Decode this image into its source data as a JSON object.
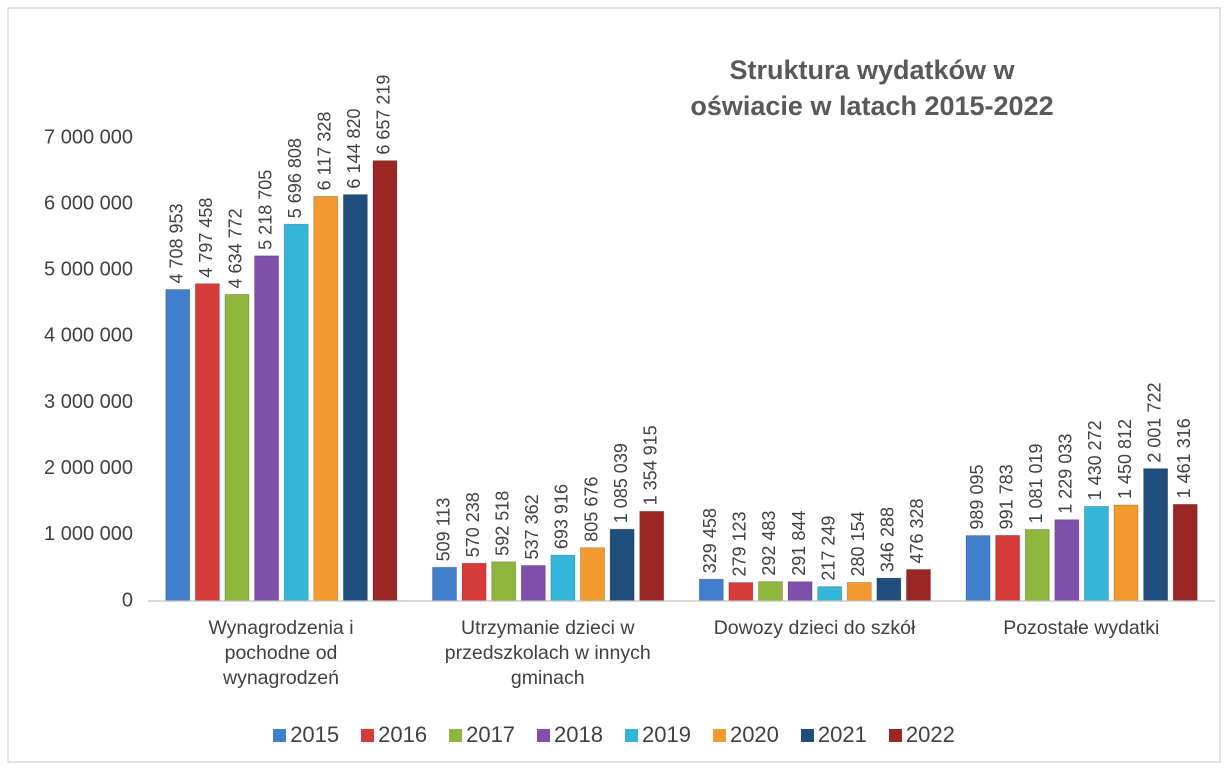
{
  "chart_data": {
    "type": "bar",
    "title": "Struktura wydatków w\noświacie w latach 2015-2022",
    "categories": [
      "Wynagrodzenia i\npochodne od\nwynagrodzeń",
      "Utrzymanie dzieci w\nprzedszkolach w innych\ngminach",
      "Dowozy dzieci do szkół",
      "Pozostałe wydatki"
    ],
    "series": [
      {
        "name": "2015",
        "color": "#3f7fcc",
        "values": [
          4708953,
          509113,
          329458,
          989095
        ],
        "value_labels": [
          "4 708 953",
          "509 113",
          "329 458",
          "989 095"
        ]
      },
      {
        "name": "2016",
        "color": "#d63b3b",
        "values": [
          4797458,
          570238,
          279123,
          991783
        ],
        "value_labels": [
          "4 797 458",
          "570 238",
          "279 123",
          "991 783"
        ]
      },
      {
        "name": "2017",
        "color": "#8fb63c",
        "values": [
          4634772,
          592518,
          292483,
          1081019
        ],
        "value_labels": [
          "4 634 772",
          "592 518",
          "292 483",
          "1 081 019"
        ]
      },
      {
        "name": "2018",
        "color": "#7e4fab",
        "values": [
          5218705,
          537362,
          291844,
          1229033
        ],
        "value_labels": [
          "5 218 705",
          "537 362",
          "291 844",
          "1 229 033"
        ]
      },
      {
        "name": "2019",
        "color": "#33b6d9",
        "values": [
          5696808,
          693916,
          217249,
          1430272
        ],
        "value_labels": [
          "5 696 808",
          "693 916",
          "217 249",
          "1 430 272"
        ]
      },
      {
        "name": "2020",
        "color": "#f39a2f",
        "values": [
          6117328,
          805676,
          280154,
          1450812
        ],
        "value_labels": [
          "6 117 328",
          "805 676",
          "280 154",
          "1 450 812"
        ]
      },
      {
        "name": "2021",
        "color": "#1f4e7c",
        "values": [
          6144820,
          1085039,
          346288,
          2001722
        ],
        "value_labels": [
          "6 144 820",
          "1 085 039",
          "346 288",
          "2 001 722"
        ]
      },
      {
        "name": "2022",
        "color": "#9c2626",
        "values": [
          6657219,
          1354915,
          476328,
          1461316
        ],
        "value_labels": [
          "6 657 219",
          "1 354 915",
          "476 328",
          "1 461 316"
        ]
      }
    ],
    "ylim": [
      0,
      7000000
    ],
    "yticks": [
      0,
      {
        "value": 1000000,
        "label": "1 000 000"
      },
      {
        "value": 2000000,
        "label": "2 000 000"
      },
      {
        "value": 3000000,
        "label": "3 000 000"
      },
      {
        "value": 4000000,
        "label": "4 000 000"
      },
      {
        "value": 5000000,
        "label": "5 000 000"
      },
      {
        "value": 6000000,
        "label": "6 000 000"
      },
      {
        "value": 7000000,
        "label": "7 000 000"
      }
    ],
    "grid": false,
    "legend": "bottom"
  }
}
